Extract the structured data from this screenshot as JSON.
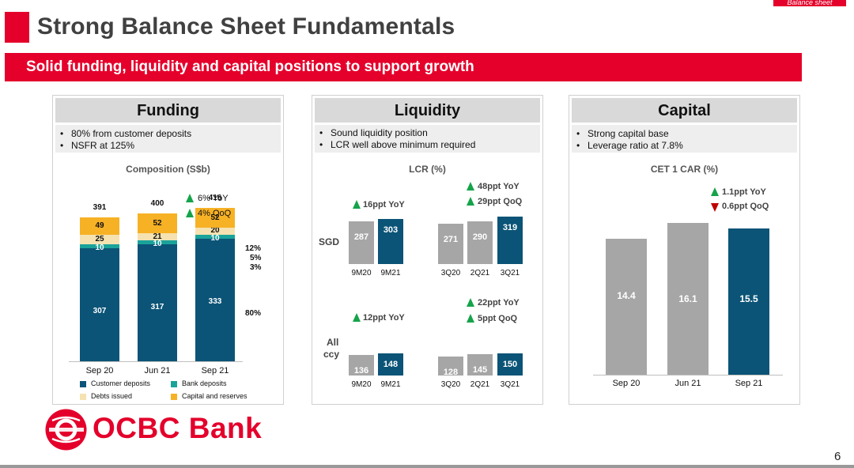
{
  "corner_tag": "Balance sheet",
  "title": "Strong Balance Sheet Fundamentals",
  "banner": "Solid funding, liquidity and capital positions to support growth",
  "page_number": "6",
  "logo_text": "OCBC Bank",
  "colors": {
    "brand_red": "#e4002b",
    "navy": "#0b5477",
    "grey": "#a6a6a6",
    "teal": "#1aa39a",
    "light_yellow": "#f5e2b0",
    "orange": "#f7b125",
    "up_green": "#16a34a",
    "down_red": "#c00000"
  },
  "funding": {
    "header": "Funding",
    "bullets": [
      "80% from customer deposits",
      "NSFR at 125%"
    ],
    "subtitle": "Composition (S$b)",
    "growth": [
      "6% YoY",
      "4% QoQ"
    ],
    "mix_pct": [
      "12%",
      "5%",
      "3%",
      "80%"
    ],
    "legend": [
      "Customer deposits",
      "Bank deposits",
      "Debts issued",
      "Capital and reserves"
    ]
  },
  "liquidity": {
    "header": "Liquidity",
    "bullets": [
      "Sound liquidity position",
      "LCR well above minimum required"
    ],
    "subtitle": "LCR (%)",
    "row_labels": [
      "SGD",
      "All",
      "ccy"
    ],
    "sgd_changes": [
      "16ppt YoY",
      "48ppt YoY",
      "29ppt QoQ"
    ],
    "all_changes": [
      "12ppt YoY",
      "22ppt YoY",
      "5ppt QoQ"
    ]
  },
  "capital": {
    "header": "Capital",
    "bullets": [
      "Strong capital base",
      "Leverage ratio at 7.8%"
    ],
    "subtitle": "CET 1 CAR (%)",
    "changes": [
      "1.1ppt YoY",
      "0.6ppt QoQ"
    ]
  },
  "chart_data": [
    {
      "type": "bar",
      "stacked": true,
      "title": "Composition (S$b)",
      "categories": [
        "Sep 20",
        "Jun 21",
        "Sep 21"
      ],
      "totals": [
        391,
        400,
        416
      ],
      "ylim": [
        0,
        420
      ],
      "series": [
        {
          "name": "Customer deposits",
          "values": [
            307,
            317,
            333
          ]
        },
        {
          "name": "Bank deposits",
          "values": [
            10,
            10,
            10
          ]
        },
        {
          "name": "Debts issued",
          "values": [
            25,
            21,
            20
          ]
        },
        {
          "name": "Capital and reserves",
          "values": [
            49,
            52,
            52
          ]
        }
      ]
    },
    {
      "type": "bar",
      "title": "LCR (%)",
      "row": "SGD",
      "ylim": [
        0,
        330
      ],
      "categories": [
        "9M20",
        "9M21",
        "3Q20",
        "2Q21",
        "3Q21"
      ],
      "values": [
        287,
        303,
        271,
        290,
        319
      ]
    },
    {
      "type": "bar",
      "title": "LCR (%)",
      "row": "All ccy",
      "ylim": [
        0,
        330
      ],
      "categories": [
        "9M20",
        "9M21",
        "3Q20",
        "2Q21",
        "3Q21"
      ],
      "values": [
        136,
        148,
        128,
        145,
        150
      ]
    },
    {
      "type": "bar",
      "title": "CET 1 CAR (%)",
      "ylim": [
        0,
        16.5
      ],
      "categories": [
        "Sep 20",
        "Jun 21",
        "Sep 21"
      ],
      "values": [
        14.4,
        16.1,
        15.5
      ]
    }
  ]
}
